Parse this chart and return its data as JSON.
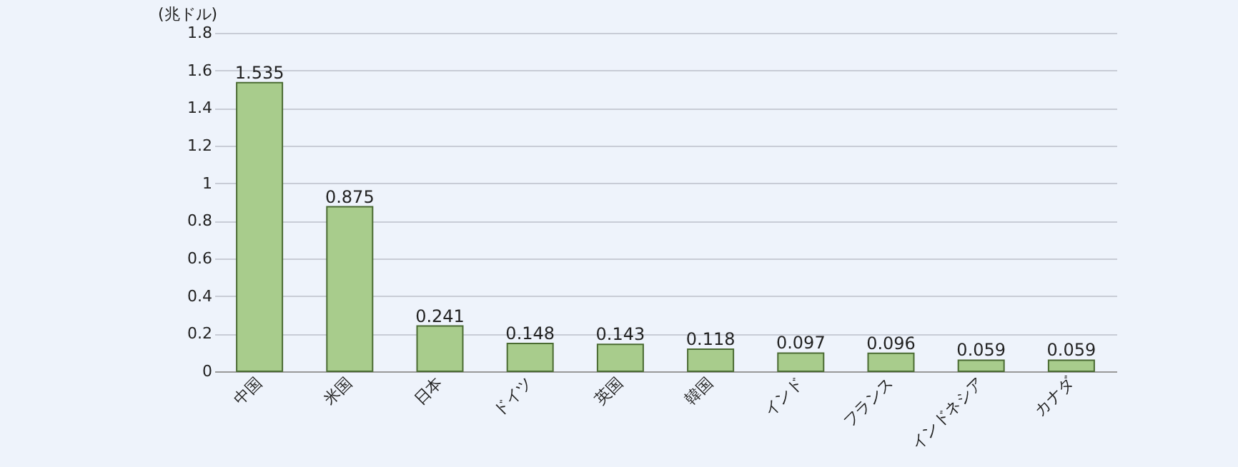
{
  "chart_data": {
    "type": "bar",
    "ylabel": "(兆ドル)",
    "categories": [
      "中国",
      "米国",
      "日本",
      "ドイツ",
      "英国",
      "韓国",
      "インド",
      "フランス",
      "インドネシア",
      "カナダ"
    ],
    "values": [
      1.535,
      0.875,
      0.241,
      0.148,
      0.143,
      0.118,
      0.097,
      0.096,
      0.059,
      0.059
    ],
    "color": "#a8cc8c",
    "ylim": [
      0,
      1.8
    ],
    "yticks": [
      0,
      0.2,
      0.4,
      0.6,
      0.8,
      1,
      1.2,
      1.4,
      1.6,
      1.8
    ],
    "grid": "y",
    "data_labels": true
  }
}
